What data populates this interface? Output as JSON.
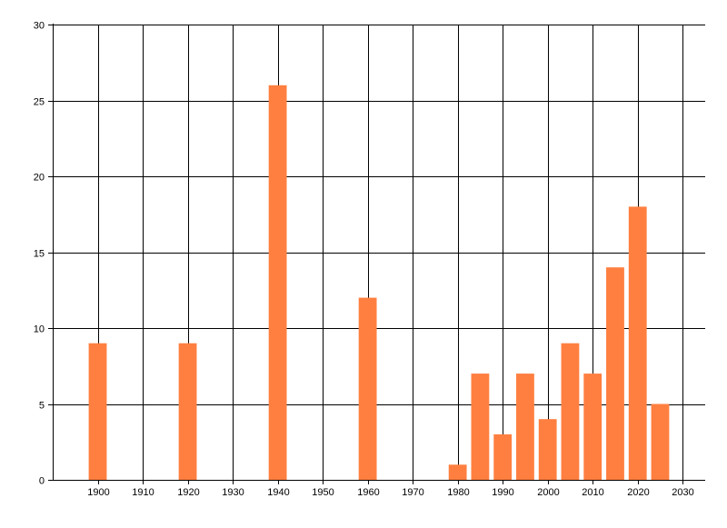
{
  "chart_data": {
    "type": "bar",
    "title": "",
    "xlabel": "",
    "ylabel": "",
    "x": [
      1900,
      1920,
      1940,
      1960,
      1980,
      1985,
      1990,
      1995,
      2000,
      2005,
      2010,
      2015,
      2020,
      2025
    ],
    "values": [
      9,
      9,
      26,
      12,
      1,
      7,
      3,
      7,
      4,
      9,
      7,
      14,
      18,
      5
    ],
    "bar_width_years": 4,
    "xlim": [
      1890,
      2035
    ],
    "ylim": [
      0,
      30
    ],
    "xticks": [
      1900,
      1910,
      1920,
      1930,
      1940,
      1950,
      1960,
      1970,
      1980,
      1990,
      2000,
      2010,
      2020,
      2030
    ],
    "yticks": [
      0,
      5,
      10,
      15,
      20,
      25,
      30
    ],
    "grid": true,
    "legend": "none",
    "colors": {
      "bar": "#FF7F40",
      "grid": "#000000",
      "axis": "#000000"
    }
  }
}
